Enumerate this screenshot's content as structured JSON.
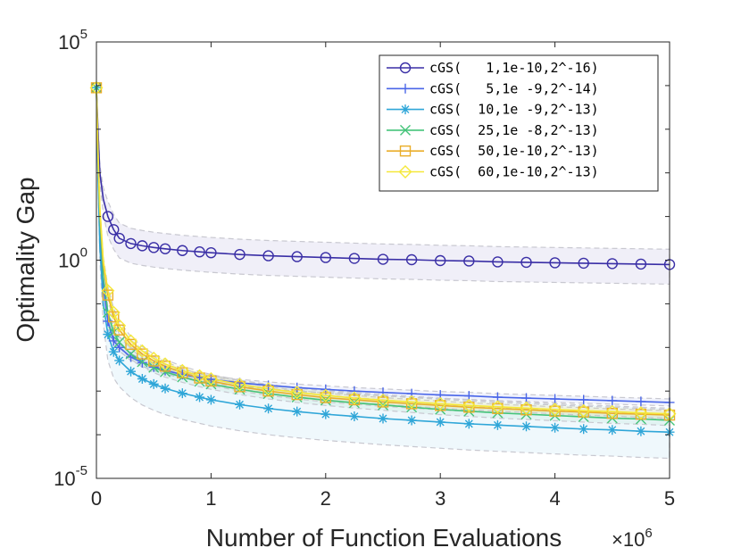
{
  "chart_data": {
    "type": "line",
    "title": "",
    "xlabel": "Number of Function Evaluations",
    "ylabel": "Optimality Gap",
    "x_multiplier_label": "×10",
    "x_multiplier_exp": "6",
    "x_multiplier": 1000000,
    "xlim": [
      0,
      5
    ],
    "ylim_log10": [
      -5,
      5
    ],
    "yscale": "log",
    "x_ticks": [
      {
        "value": 0,
        "label": "0"
      },
      {
        "value": 1,
        "label": "1"
      },
      {
        "value": 2,
        "label": "2"
      },
      {
        "value": 3,
        "label": "3"
      },
      {
        "value": 4,
        "label": "4"
      },
      {
        "value": 5,
        "label": "5"
      }
    ],
    "y_ticks": [
      {
        "exp": -5,
        "base": "10",
        "sup": "-5"
      },
      {
        "exp": 0,
        "base": "10",
        "sup": "0"
      },
      {
        "exp": 5,
        "base": "10",
        "sup": "5"
      }
    ],
    "grid": false,
    "legend_position": "top-right",
    "x": [
      0,
      0.015,
      0.03,
      0.06,
      0.1,
      0.15,
      0.2,
      0.3,
      0.4,
      0.5,
      0.6,
      0.75,
      0.9,
      1.0,
      1.25,
      1.5,
      1.75,
      2.0,
      2.25,
      2.5,
      2.75,
      3.0,
      3.25,
      3.5,
      3.75,
      4.0,
      4.25,
      4.5,
      4.75,
      5.0
    ],
    "series": [
      {
        "name": "cGS(   1,1e-10,2^-16)",
        "color": "#3a2fa6",
        "marker": "circle",
        "log10_values": [
          3.95,
          2.9,
          2.0,
          1.4,
          1.0,
          0.7,
          0.5,
          0.38,
          0.33,
          0.29,
          0.26,
          0.22,
          0.19,
          0.17,
          0.13,
          0.1,
          0.08,
          0.06,
          0.04,
          0.02,
          0.01,
          -0.01,
          -0.02,
          -0.04,
          -0.05,
          -0.06,
          -0.07,
          -0.08,
          -0.09,
          -0.1
        ],
        "band_log10": {
          "upper_offset": 0.35,
          "lower_offset": 0.45
        }
      },
      {
        "name": "cGS(   5,1e -9,2^-14)",
        "color": "#4a66e8",
        "marker": "plus",
        "log10_values": [
          3.95,
          2.0,
          0.6,
          -0.6,
          -1.4,
          -1.85,
          -2.0,
          -2.22,
          -2.35,
          -2.45,
          -2.53,
          -2.62,
          -2.69,
          -2.73,
          -2.81,
          -2.87,
          -2.92,
          -2.96,
          -3.0,
          -3.03,
          -3.06,
          -3.09,
          -3.11,
          -3.14,
          -3.16,
          -3.18,
          -3.2,
          -3.22,
          -3.24,
          -3.26
        ],
        "band_log10": {
          "upper_offset": 0.08,
          "lower_offset": 0.08
        }
      },
      {
        "name": "cGS(  10,1e -9,2^-13)",
        "color": "#2fa6d8",
        "marker": "star",
        "log10_values": [
          3.95,
          1.8,
          0.3,
          -1.0,
          -1.7,
          -2.1,
          -2.3,
          -2.55,
          -2.72,
          -2.84,
          -2.94,
          -3.05,
          -3.14,
          -3.2,
          -3.31,
          -3.4,
          -3.47,
          -3.53,
          -3.58,
          -3.63,
          -3.67,
          -3.71,
          -3.75,
          -3.78,
          -3.81,
          -3.84,
          -3.87,
          -3.89,
          -3.92,
          -3.94
        ],
        "band_log10": {
          "upper_offset": 0.55,
          "lower_offset": 0.6
        }
      },
      {
        "name": "cGS(  25,1e -8,2^-13)",
        "color": "#45c47a",
        "marker": "x",
        "log10_values": [
          3.95,
          2.2,
          1.0,
          -0.4,
          -1.2,
          -1.65,
          -1.88,
          -2.15,
          -2.33,
          -2.46,
          -2.56,
          -2.68,
          -2.78,
          -2.84,
          -2.96,
          -3.06,
          -3.14,
          -3.21,
          -3.27,
          -3.32,
          -3.37,
          -3.42,
          -3.46,
          -3.5,
          -3.53,
          -3.56,
          -3.59,
          -3.62,
          -3.64,
          -3.67
        ],
        "band_log10": {
          "upper_offset": 0.12,
          "lower_offset": 0.12
        }
      },
      {
        "name": "cGS(  50,1e-10,2^-13)",
        "color": "#eaae2a",
        "marker": "square",
        "log10_values": [
          3.95,
          2.3,
          1.1,
          -0.1,
          -0.8,
          -1.3,
          -1.6,
          -1.93,
          -2.15,
          -2.31,
          -2.43,
          -2.58,
          -2.7,
          -2.77,
          -2.9,
          -3.0,
          -3.08,
          -3.15,
          -3.2,
          -3.25,
          -3.29,
          -3.33,
          -3.37,
          -3.4,
          -3.43,
          -3.46,
          -3.48,
          -3.51,
          -3.53,
          -3.55
        ],
        "band_log10": {
          "upper_offset": 0.1,
          "lower_offset": 0.1
        }
      },
      {
        "name": "cGS(  60,1e-10,2^-13)",
        "color": "#f5e83a",
        "marker": "diamond",
        "log10_values": [
          3.95,
          2.4,
          1.2,
          0.0,
          -0.7,
          -1.2,
          -1.5,
          -1.85,
          -2.08,
          -2.25,
          -2.38,
          -2.53,
          -2.65,
          -2.72,
          -2.85,
          -2.95,
          -3.03,
          -3.1,
          -3.16,
          -3.21,
          -3.25,
          -3.29,
          -3.33,
          -3.36,
          -3.39,
          -3.42,
          -3.45,
          -3.47,
          -3.5,
          -3.52
        ],
        "band_log10": {
          "upper_offset": 0.1,
          "lower_offset": 0.1
        }
      }
    ]
  }
}
